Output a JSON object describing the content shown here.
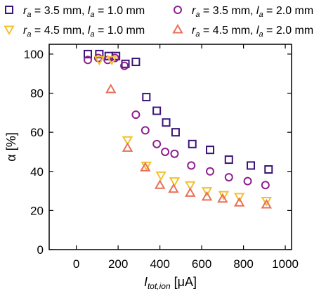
{
  "chart_data": {
    "type": "scatter",
    "ylabel": "α [%]",
    "xlabel_main": "I",
    "xlabel_sub": "tot,ion",
    "xlabel_unit": " [μA]",
    "xlim": [
      -130,
      1030
    ],
    "ylim": [
      0,
      105
    ],
    "xticks": [
      0,
      200,
      400,
      600,
      800,
      1000
    ],
    "yticks": [
      0,
      20,
      40,
      60,
      80,
      100
    ],
    "grid": false,
    "legend_position": "top",
    "series": [
      {
        "name": "r_a = 3.5 mm, l_a = 1.0 mm",
        "label_parts": [
          "r",
          "a",
          " = 3.5 mm, ",
          "l",
          "a",
          " = 1.0 mm"
        ],
        "marker": "square",
        "color": "#3a1478",
        "x": [
          55,
          110,
          155,
          190,
          235,
          285,
          335,
          385,
          430,
          475,
          555,
          640,
          730,
          835,
          920
        ],
        "y": [
          100,
          100,
          99,
          99,
          95,
          96,
          78,
          71,
          65,
          60,
          54,
          51,
          46,
          43,
          41
        ]
      },
      {
        "name": "r_a = 3.5 mm, l_a = 2.0 mm",
        "label_parts": [
          "r",
          "a",
          " = 3.5 mm, ",
          "l",
          "a",
          " = 2.0 mm"
        ],
        "marker": "circle",
        "color": "#8e1f8c",
        "x": [
          55,
          105,
          150,
          185,
          230,
          285,
          330,
          385,
          425,
          470,
          550,
          640,
          730,
          820,
          905
        ],
        "y": [
          97,
          98,
          97,
          98,
          94,
          69,
          61,
          54,
          50,
          49,
          43,
          40,
          37,
          35,
          33
        ]
      },
      {
        "name": "r_a = 4.5 mm, l_a = 1.0 mm",
        "label_parts": [
          "r",
          "a",
          " = 4.5 mm, ",
          "l",
          "a",
          " = 1.0 mm"
        ],
        "marker": "triangle-down",
        "color": "#f2c12e",
        "x": [
          110,
          170,
          245,
          335,
          405,
          470,
          545,
          625,
          705,
          780,
          910
        ],
        "y": [
          97,
          97,
          56,
          43,
          38,
          35,
          33,
          30,
          28,
          27,
          25
        ]
      },
      {
        "name": "r_a = 4.5 mm, l_a = 2.0 mm",
        "label_parts": [
          "r",
          "a",
          " = 4.5 mm, ",
          "l",
          "a",
          " = 2.0 mm"
        ],
        "marker": "triangle-up",
        "color": "#e8705a",
        "x": [
          165,
          245,
          330,
          400,
          465,
          545,
          625,
          700,
          780,
          910
        ],
        "y": [
          82,
          52,
          42,
          33,
          31,
          29,
          27,
          26,
          24,
          23
        ]
      }
    ]
  }
}
